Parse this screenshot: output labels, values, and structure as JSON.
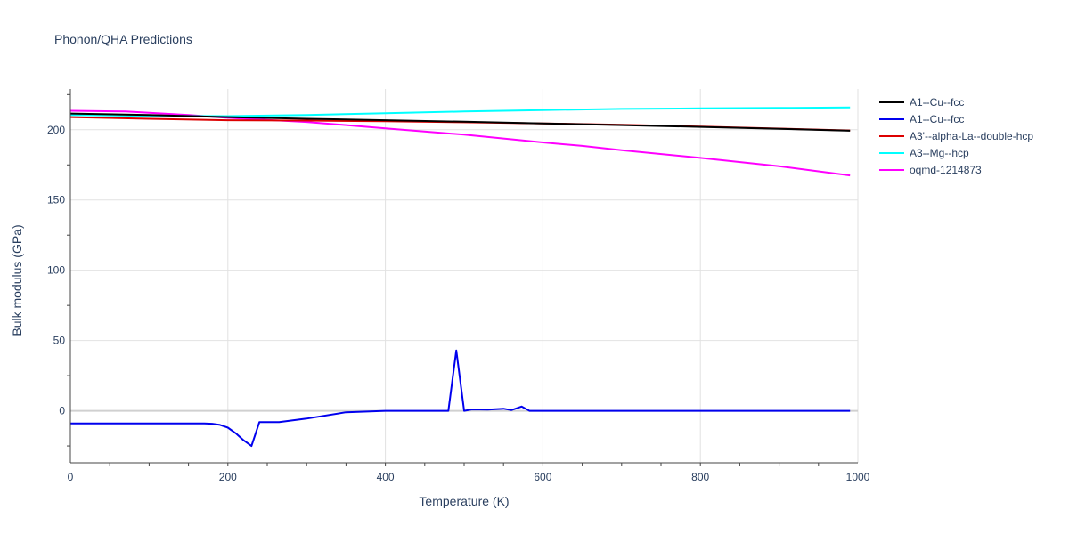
{
  "chart_data": {
    "type": "line",
    "title": "Phonon/QHA Predictions",
    "xlabel": "Temperature (K)",
    "ylabel": "Bulk modulus (GPa)",
    "xlim": [
      0,
      1000
    ],
    "ylim": [
      -37,
      229
    ],
    "x_ticks": [
      0,
      200,
      400,
      600,
      800,
      1000
    ],
    "y_ticks": [
      0,
      50,
      100,
      150,
      200
    ],
    "grid": true,
    "legend_position": "top-right",
    "series": [
      {
        "name": "A1--Cu--fcc",
        "color": "#000000",
        "x": [
          0,
          100,
          200,
          300,
          400,
          500,
          600,
          700,
          800,
          900,
          990
        ],
        "y": [
          211.5,
          210.5,
          209,
          207.8,
          206.8,
          205.7,
          204.5,
          203.3,
          202,
          200.7,
          199.3
        ]
      },
      {
        "name": "A1--Cu--fcc",
        "color": "#0000ee",
        "x": [
          0,
          170,
          180,
          190,
          200,
          210,
          220,
          230,
          240,
          250,
          265,
          300,
          350,
          400,
          480,
          490,
          500,
          510,
          530,
          550,
          560,
          573,
          583,
          600,
          700,
          800,
          900,
          990
        ],
        "y": [
          -9,
          -9,
          -9.2,
          -10,
          -12,
          -16,
          -21,
          -25,
          -8,
          -8,
          -8,
          -5.5,
          -1,
          0,
          0,
          43,
          0,
          1,
          0.8,
          1.5,
          0.5,
          3,
          0,
          0,
          0,
          0,
          0,
          0
        ]
      },
      {
        "name": "A3'--alpha-La--double-hcp",
        "color": "#dd0000",
        "x": [
          0,
          100,
          200,
          300,
          400,
          500,
          600,
          700,
          800,
          900,
          990
        ],
        "y": [
          209,
          207.8,
          206.8,
          206.5,
          206,
          205.3,
          204.5,
          203.5,
          202.2,
          200.8,
          199.5
        ]
      },
      {
        "name": "A3--Mg--hcp",
        "color": "#00ffff",
        "x": [
          0,
          100,
          200,
          300,
          400,
          500,
          600,
          700,
          800,
          900,
          990
        ],
        "y": [
          210.5,
          209.8,
          209.7,
          210.5,
          211.8,
          213,
          214,
          214.8,
          215.2,
          215.5,
          215.8
        ]
      },
      {
        "name": "oqmd-1214873",
        "color": "#ff00ff",
        "x": [
          0,
          70,
          100,
          150,
          200,
          300,
          400,
          500,
          600,
          650,
          700,
          800,
          900,
          990
        ],
        "y": [
          213.5,
          213,
          212,
          210.5,
          208.5,
          205.5,
          201,
          196.5,
          191,
          188.5,
          185.5,
          180,
          174,
          167.5
        ]
      }
    ]
  }
}
